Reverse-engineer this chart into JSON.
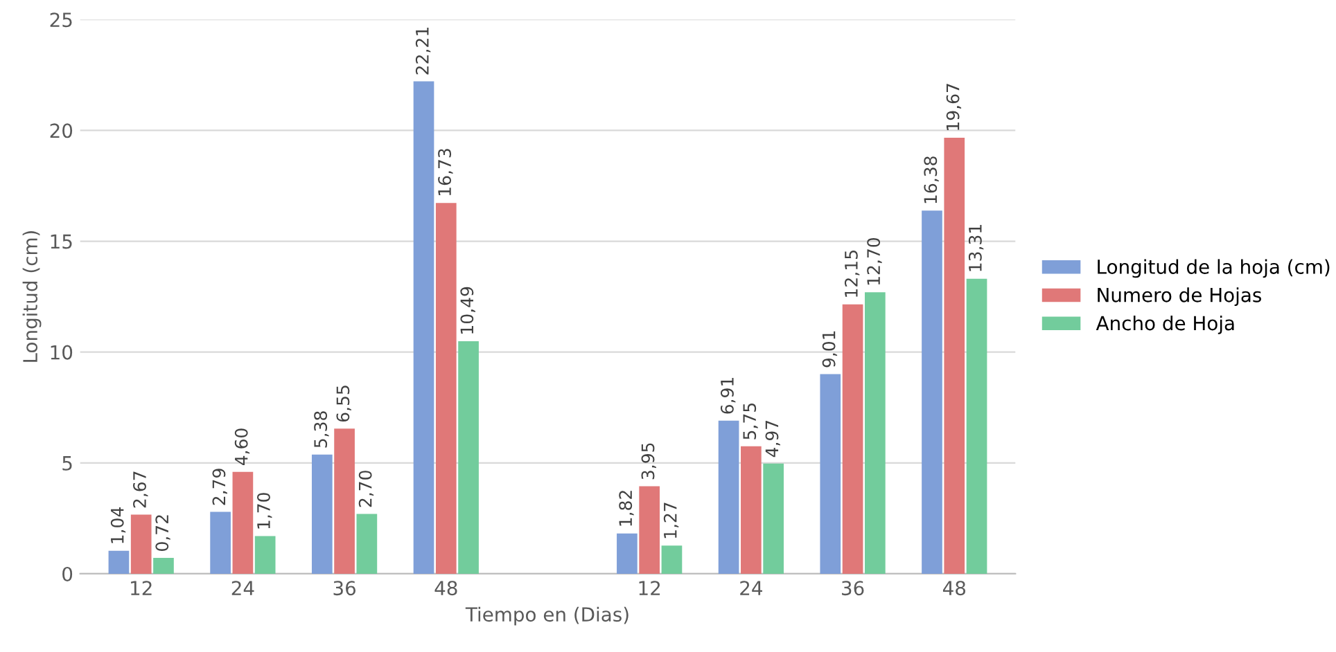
{
  "chart_data": {
    "type": "bar",
    "xlabel": "Tiempo en (Dias)",
    "ylabel": "Longitud (cm)",
    "categories": [
      "12",
      "24",
      "36",
      "48",
      null,
      "12",
      "24",
      "36",
      "48"
    ],
    "series": [
      {
        "name": "Longitud de la hoja (cm)",
        "color": "#7f9fd8",
        "values": [
          1.04,
          2.79,
          5.38,
          22.21,
          null,
          1.82,
          6.91,
          9.01,
          16.38
        ],
        "value_labels": [
          "1,04",
          "2,79",
          "5,38",
          "22,21",
          null,
          "1,82",
          "6,91",
          "9,01",
          "16,38"
        ]
      },
      {
        "name": "Numero de Hojas",
        "color": "#e07878",
        "values": [
          2.67,
          4.6,
          6.55,
          16.73,
          null,
          3.95,
          5.75,
          12.15,
          19.67
        ],
        "value_labels": [
          "2,67",
          "4,60",
          "6,55",
          "16,73",
          null,
          "3,95",
          "5,75",
          "12,15",
          "19,67"
        ]
      },
      {
        "name": "Ancho de Hoja",
        "color": "#72cc9c",
        "values": [
          0.72,
          1.7,
          2.7,
          10.49,
          null,
          1.27,
          4.97,
          12.7,
          13.31
        ],
        "value_labels": [
          "0,72",
          "1,70",
          "2,70",
          "10,49",
          null,
          "1,27",
          "4,97",
          "12,70",
          "13,31"
        ]
      }
    ],
    "ylim": [
      0,
      25
    ],
    "yticks": [
      0,
      5,
      10,
      15,
      20,
      25
    ],
    "grid": "y",
    "legend": "right"
  }
}
